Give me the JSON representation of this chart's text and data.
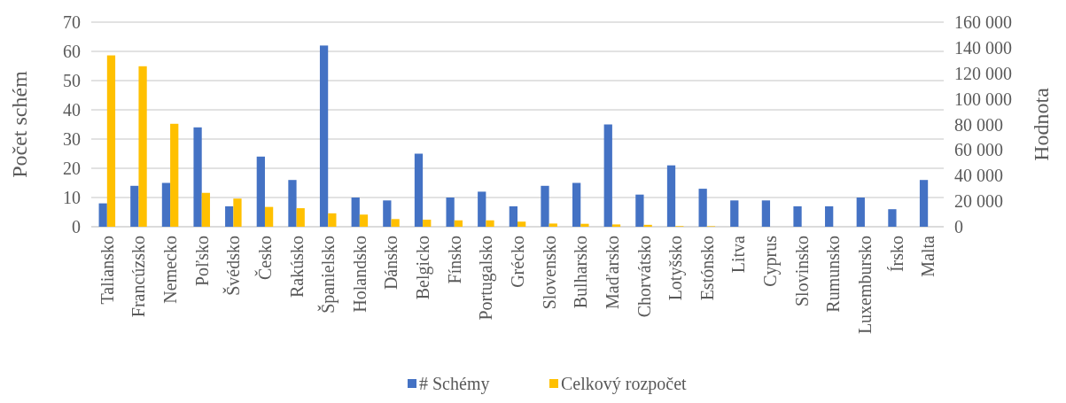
{
  "chart_data": {
    "type": "bar",
    "ylabel": "Počet schém",
    "y2label": "Hodnota",
    "categories": [
      "Taliansko",
      "Francúzsko",
      "Nemecko",
      "Poľsko",
      "Švédsko",
      "Česko",
      "Rakúsko",
      "Španielsko",
      "Holandsko",
      "Dánsko",
      "Belgicko",
      "Fínsko",
      "Portugalsko",
      "Grécko",
      "Slovensko",
      "Bulharsko",
      "Maďarsko",
      "Chorvátsko",
      "Lotyšsko",
      "Estónsko",
      "Litva",
      "Cyprus",
      "Slovinsko",
      "Rumunsko",
      "Luxembursko",
      "Írsko",
      "Malta"
    ],
    "series": [
      {
        "name": "# Schémy",
        "color": "#4472c4",
        "values": [
          8,
          14,
          15,
          34,
          7,
          24,
          16,
          62,
          10,
          9,
          25,
          10,
          12,
          7,
          14,
          15,
          35,
          11,
          21,
          13,
          9,
          9,
          7,
          7,
          10,
          6,
          16
        ]
      },
      {
        "name": "Celkový rozpočet",
        "color": "#ffc000",
        "axis": "y2",
        "values": [
          134000,
          125500,
          80500,
          26500,
          22000,
          15500,
          14500,
          10500,
          9500,
          6000,
          5500,
          5000,
          5000,
          4000,
          2500,
          2300,
          1800,
          1500,
          500,
          400,
          0,
          0,
          0,
          0,
          0,
          0,
          0
        ]
      }
    ],
    "ylim": [
      0,
      70
    ],
    "yticks": [
      0,
      10,
      20,
      30,
      40,
      50,
      60,
      70
    ],
    "y2lim": [
      0,
      160000
    ],
    "y2ticks": [
      {
        "value": 0,
        "label": "0"
      },
      {
        "value": 20000,
        "label": "20 000"
      },
      {
        "value": 40000,
        "label": "40 000"
      },
      {
        "value": 60000,
        "label": "60 000"
      },
      {
        "value": 80000,
        "label": "80 000"
      },
      {
        "value": 100000,
        "label": "100 000"
      },
      {
        "value": 120000,
        "label": "120 000"
      },
      {
        "value": 140000,
        "label": "140 000"
      },
      {
        "value": 160000,
        "label": "160 000"
      }
    ],
    "grid": "y",
    "legend": "bottom"
  }
}
